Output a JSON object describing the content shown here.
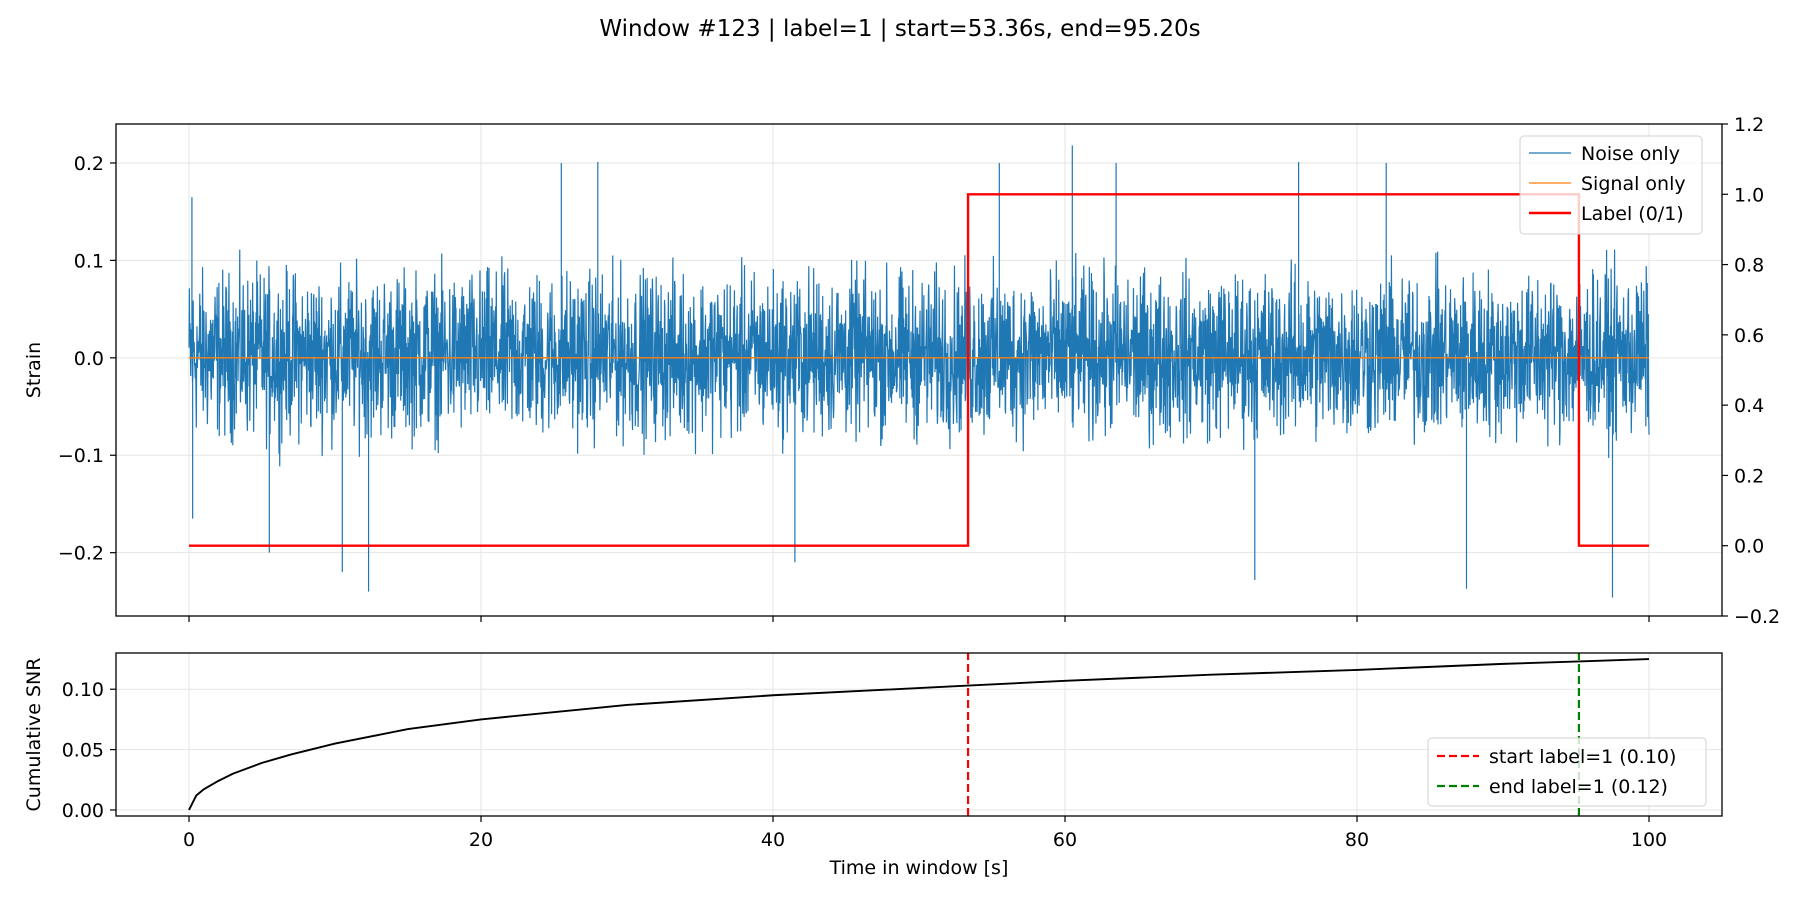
{
  "figure": {
    "title": "Window #123 | label=1 | start=53.36s, end=95.20s"
  },
  "chart_data": [
    {
      "type": "line",
      "panel": "top",
      "title": "",
      "xlabel": "",
      "ylabel": "Strain",
      "xlim": [
        -5,
        105
      ],
      "ylim": [
        -0.265,
        0.24
      ],
      "yticks": [
        -0.2,
        -0.1,
        0.0,
        0.1,
        0.2
      ],
      "yticklabels": [
        "−0.2",
        "−0.1",
        "0.0",
        "0.1",
        "0.2"
      ],
      "y2lim": [
        -0.2,
        1.2
      ],
      "y2ticks": [
        -0.2,
        0.0,
        0.2,
        0.4,
        0.6,
        0.8,
        1.0,
        1.2
      ],
      "y2ticklabels": [
        "−0.2",
        "0.0",
        "0.2",
        "0.4",
        "0.6",
        "0.8",
        "1.0",
        "1.2"
      ],
      "xticks": [
        0,
        20,
        40,
        60,
        80,
        100
      ],
      "grid": true,
      "legend_position": "upper right",
      "series": [
        {
          "name": "Noise only",
          "color": "#1f77b4",
          "kind": "dense-noise",
          "x_range": [
            0,
            100
          ],
          "typical_envelope": [
            -0.1,
            0.13
          ],
          "peaks": [
            {
              "x": 0.2,
              "y": 0.165
            },
            {
              "x": 0.25,
              "y": -0.165
            },
            {
              "x": 5.5,
              "y": -0.2
            },
            {
              "x": 10.5,
              "y": -0.22
            },
            {
              "x": 12.3,
              "y": -0.24
            },
            {
              "x": 25.5,
              "y": 0.2
            },
            {
              "x": 28.0,
              "y": 0.201
            },
            {
              "x": 41.5,
              "y": -0.21
            },
            {
              "x": 55.5,
              "y": 0.2
            },
            {
              "x": 60.5,
              "y": 0.218
            },
            {
              "x": 63.5,
              "y": 0.2
            },
            {
              "x": 73.0,
              "y": -0.228
            },
            {
              "x": 76.0,
              "y": 0.201
            },
            {
              "x": 82.0,
              "y": 0.2
            },
            {
              "x": 87.5,
              "y": -0.237
            },
            {
              "x": 97.5,
              "y": -0.246
            }
          ]
        },
        {
          "name": "Signal only",
          "color": "#ff7f0e",
          "x": [
            0,
            100
          ],
          "y": [
            0,
            0
          ]
        },
        {
          "name": "Label (0/1)",
          "color": "#ff0000",
          "axis": "right",
          "x": [
            0,
            53.36,
            53.36,
            95.2,
            95.2,
            100
          ],
          "y": [
            0,
            0,
            1,
            1,
            0,
            0
          ]
        }
      ]
    },
    {
      "type": "line",
      "panel": "bottom",
      "title": "",
      "xlabel": "Time in window [s]",
      "ylabel": "Cumulative SNR",
      "xlim": [
        -5,
        105
      ],
      "ylim": [
        -0.005,
        0.13
      ],
      "yticks": [
        0.0,
        0.05,
        0.1
      ],
      "yticklabels": [
        "0.00",
        "0.05",
        "0.10"
      ],
      "xticks": [
        0,
        20,
        40,
        60,
        80,
        100
      ],
      "xticklabels": [
        "0",
        "20",
        "40",
        "60",
        "80",
        "100"
      ],
      "grid": true,
      "legend_position": "lower right",
      "series": [
        {
          "name": "",
          "color": "#000000",
          "x": [
            0,
            0.5,
            1,
            2,
            3,
            5,
            7,
            10,
            15,
            20,
            30,
            40,
            53.36,
            60,
            70,
            80,
            90,
            95.2,
            100
          ],
          "y": [
            0.0,
            0.012,
            0.017,
            0.024,
            0.03,
            0.039,
            0.046,
            0.055,
            0.067,
            0.075,
            0.087,
            0.095,
            0.103,
            0.107,
            0.112,
            0.116,
            0.121,
            0.123,
            0.125
          ]
        },
        {
          "name": "start label=1 (0.10)",
          "color": "#ff0000",
          "style": "dashed",
          "x": [
            53.36,
            53.36
          ],
          "y": [
            -0.005,
            0.13
          ]
        },
        {
          "name": "end label=1 (0.12)",
          "color": "#008000",
          "style": "dashed",
          "x": [
            95.2,
            95.2
          ],
          "y": [
            -0.005,
            0.13
          ]
        }
      ]
    }
  ]
}
